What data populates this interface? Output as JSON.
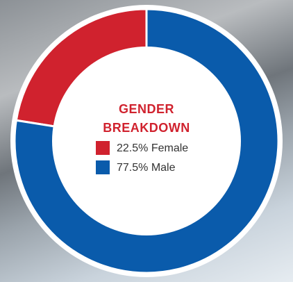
{
  "chart_data": {
    "type": "donut",
    "title": "GENDER BREAKDOWN",
    "values": [
      22.5,
      77.5
    ],
    "value_labels": [
      "22.5% Female",
      "77.5% Male"
    ],
    "colors": [
      "#d0222e",
      "#0a5bab"
    ]
  }
}
